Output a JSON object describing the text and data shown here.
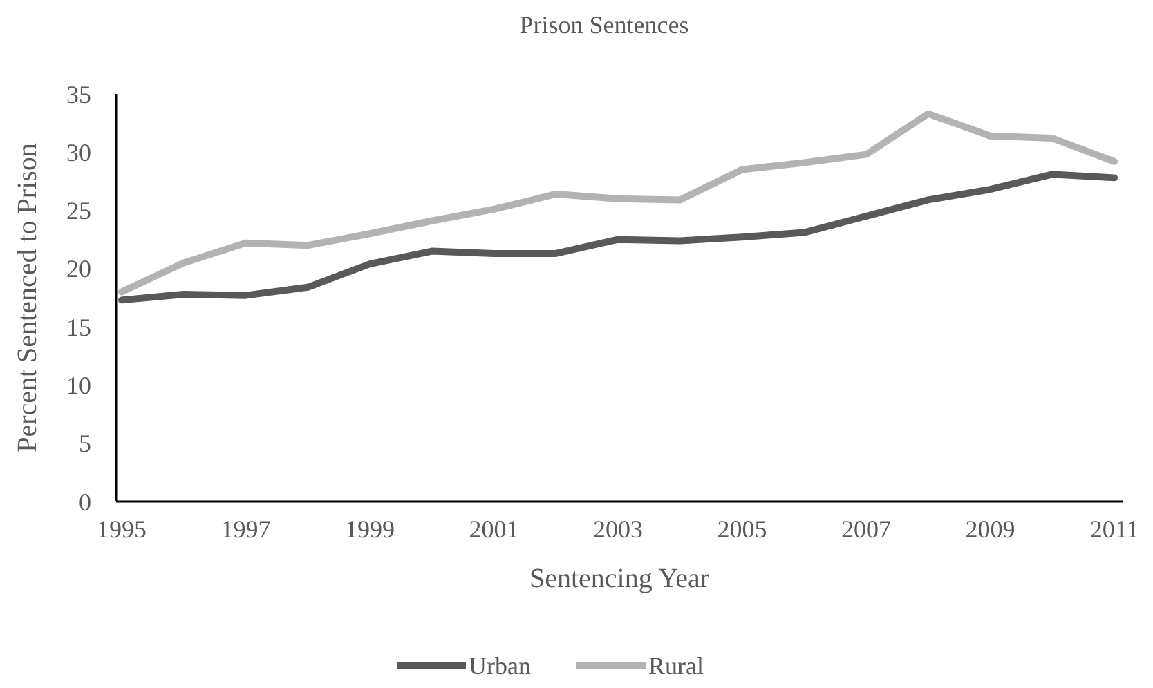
{
  "chart_data": {
    "type": "line",
    "title": "Prison Sentences",
    "xlabel": "Sentencing Year",
    "ylabel": "Percent Sentenced to Prison",
    "categories": [
      "1995",
      null,
      "1997",
      null,
      "1999",
      null,
      "2001",
      null,
      "2003",
      null,
      "2005",
      null,
      "2007",
      null,
      "2009",
      null,
      "2011"
    ],
    "series": [
      {
        "name": "Urban",
        "color": "#595959",
        "values": [
          17.3,
          17.8,
          17.7,
          18.4,
          20.4,
          21.5,
          21.3,
          21.3,
          22.5,
          22.4,
          22.7,
          23.1,
          24.5,
          25.9,
          26.8,
          28.1,
          27.8
        ]
      },
      {
        "name": "Rural",
        "color": "#b3b3b3",
        "values": [
          18.0,
          20.5,
          22.2,
          22.0,
          23.0,
          24.1,
          25.1,
          26.4,
          26.0,
          25.9,
          28.5,
          29.1,
          29.8,
          33.3,
          31.4,
          31.2,
          29.2
        ]
      }
    ],
    "ylim": [
      0,
      35
    ],
    "yticks": [
      0,
      5,
      10,
      15,
      20,
      25,
      30,
      35
    ],
    "legend": "bottom",
    "grid": false,
    "marker": "none",
    "line_style": "solid"
  }
}
